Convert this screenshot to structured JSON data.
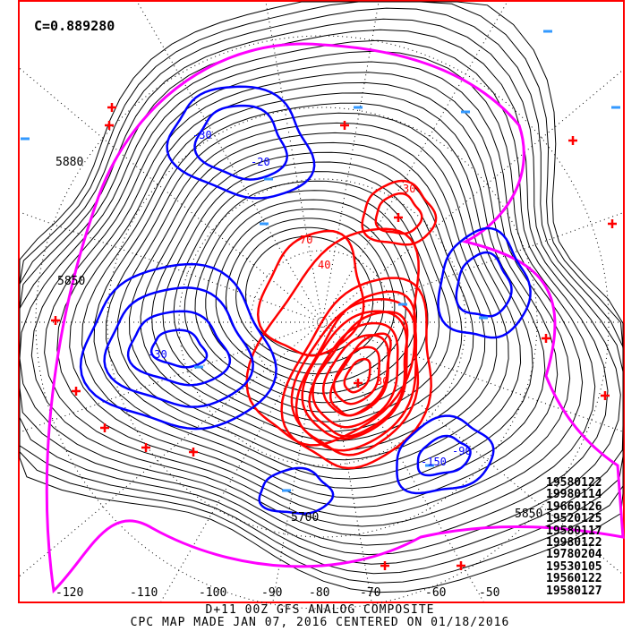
{
  "correlation": "C=0.889280",
  "caption": {
    "line1": "D+11 00Z GFS ANALOG COMPOSITE",
    "line2": "CPC MAP MADE JAN 07, 2016 CENTERED ON 01/18/2016"
  },
  "analog_dates": [
    "19580122",
    "19980114",
    "19660126",
    "19520125",
    "19580117",
    "19980122",
    "19780204",
    "19530105",
    "19560122",
    "19580127"
  ],
  "longitude_labels": [
    "-120",
    "-110",
    "-100",
    "-90",
    "-80",
    "-70",
    "-60",
    "-50"
  ],
  "height_labels": [
    "5880",
    "5850",
    "5850",
    "5700"
  ],
  "anomaly_labels": [
    "-30",
    "-20",
    "30",
    "70",
    "40",
    "-90",
    "-150",
    "30",
    "-30"
  ],
  "colors": {
    "frame": "#ff0000",
    "positive_anomaly": "#ff0000",
    "negative_anomaly": "#0000ff",
    "zero_line": "#ff00ff",
    "height_contour": "#000000",
    "station_positive": "#ff0000",
    "station_negative": "#3399ff"
  }
}
